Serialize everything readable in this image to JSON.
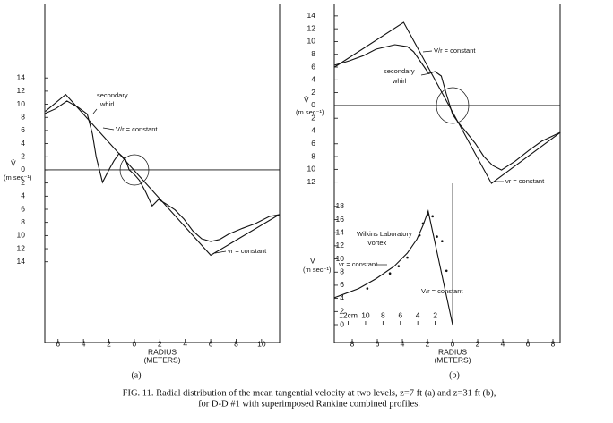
{
  "chart_data": [
    {
      "type": "line",
      "panel_label": "(a)",
      "ylabel": "V̄",
      "ylabel_unit": "(m sec⁻¹)",
      "xlabel": "RADIUS",
      "xlabel_unit": "(METERS)",
      "xlim": [
        -7.04,
        11.42
      ],
      "ylim": [
        -26.3,
        25.2
      ],
      "xticks": [
        {
          "value": -6,
          "label": "6"
        },
        {
          "value": -4,
          "label": "4"
        },
        {
          "value": -2,
          "label": "2"
        },
        0,
        2,
        4,
        6,
        8,
        10
      ],
      "yticks": [
        14,
        12,
        10,
        8,
        6,
        4,
        2,
        0,
        {
          "value": -2,
          "label": "2"
        },
        {
          "value": -4,
          "label": "4"
        },
        {
          "value": -6,
          "label": "6"
        },
        {
          "value": -8,
          "label": "8"
        },
        {
          "value": -10,
          "label": "10"
        },
        {
          "value": -12,
          "label": "12"
        },
        {
          "value": -14,
          "label": "14"
        }
      ],
      "annotations": [
        "secondary",
        "whirl",
        "V/r = constant",
        "vr = constant"
      ],
      "series": [
        {
          "color": "#111",
          "style": "line",
          "x": [
            -7.0,
            -6.2,
            -5.3,
            -4.4,
            -3.7,
            -3.3,
            -3.0,
            -2.5,
            -2.0,
            -1.6,
            -1.2,
            -0.7,
            -0.4,
            0,
            0.4,
            0.9,
            1.4,
            1.9,
            2.5,
            3.2,
            3.9,
            4.6,
            5.3,
            6.0,
            6.7,
            7.4,
            8.5,
            9.5,
            10.6,
            11.4
          ],
          "values": [
            8.6,
            9.3,
            10.5,
            9.5,
            8.5,
            5.5,
            2.0,
            -1.9,
            0,
            1.4,
            2.5,
            1.6,
            0,
            -0.7,
            -1.6,
            -3.4,
            -5.5,
            -4.5,
            -5.2,
            -6.1,
            -7.5,
            -9.3,
            -10.5,
            -10.9,
            -10.6,
            -9.8,
            -8.9,
            -8.2,
            -7.1,
            -6.8
          ]
        },
        {
          "color": "#111",
          "style": "line",
          "x": [
            -7.0,
            -5.4,
            6.0,
            11.4
          ],
          "values": [
            8.9,
            11.5,
            -13.0,
            -6.8
          ]
        }
      ]
    },
    {
      "type": "line",
      "panel_label": "(b)",
      "ylabel": "V̄",
      "ylabel_unit": "(m sec⁻¹)",
      "xlabel": "RADIUS",
      "xlabel_unit": "(METERS)",
      "xlim": [
        -9.43,
        8.57
      ],
      "ylim": [
        -37.1,
        15.8
      ],
      "xticks": [
        {
          "value": -8,
          "label": "8"
        },
        {
          "value": -6,
          "label": "6"
        },
        {
          "value": -4,
          "label": "4"
        },
        {
          "value": -2,
          "label": "2"
        },
        0,
        2,
        4,
        6,
        8
      ],
      "yticks": [
        14,
        12,
        10,
        8,
        6,
        4,
        2,
        0,
        {
          "value": -2,
          "label": "2"
        },
        {
          "value": -4,
          "label": "4"
        },
        {
          "value": -6,
          "label": "6"
        },
        {
          "value": -8,
          "label": "8"
        },
        {
          "value": -10,
          "label": "10"
        },
        {
          "value": -12,
          "label": "12"
        }
      ],
      "annotations": [
        "V/r = constant",
        "secondary",
        "whirl",
        "vr = constant"
      ],
      "series": [
        {
          "color": "#111",
          "style": "line",
          "x": [
            -9.4,
            -8.2,
            -7.1,
            -6.1,
            -4.6,
            -3.6,
            -3.1,
            -2.5,
            -1.9,
            -1.4,
            -0.9,
            -0.5,
            0,
            0.5,
            1.1,
            1.8,
            2.5,
            3.2,
            3.9,
            5.0,
            6.1,
            7.1,
            8.6
          ],
          "values": [
            6.3,
            7.0,
            7.8,
            8.8,
            9.5,
            9.2,
            8.4,
            6.7,
            5.0,
            5.3,
            4.6,
            1.8,
            -1.4,
            -2.8,
            -4.2,
            -5.9,
            -8.0,
            -9.4,
            -10.1,
            -8.7,
            -7.0,
            -5.6,
            -4.2
          ]
        },
        {
          "color": "#111",
          "style": "line",
          "x": [
            -9.4,
            -3.9,
            3.1,
            8.6
          ],
          "values": [
            6.0,
            13.0,
            -12.2,
            -4.2
          ]
        }
      ]
    },
    {
      "type": "line",
      "ylabel": "V",
      "ylabel_unit": "(m sec⁻¹)",
      "xlim": [
        -13.6,
        0
      ],
      "ylim": [
        0,
        19.2
      ],
      "xticks": [
        {
          "value": -12,
          "label": "12cm"
        },
        {
          "value": -10,
          "label": "10"
        },
        {
          "value": -8,
          "label": "8"
        },
        {
          "value": -6,
          "label": "6"
        },
        {
          "value": -4,
          "label": "4"
        },
        {
          "value": -2,
          "label": "2"
        }
      ],
      "yticks": [
        0,
        2,
        4,
        6,
        8,
        10,
        12,
        14,
        16,
        18
      ],
      "annotations": [
        "Wilkins Laboratory",
        "Vortex",
        "vr = constant",
        "V/r = constant"
      ],
      "series": [
        {
          "color": "#111",
          "style": "line",
          "x": [
            -13.6,
            -10.8,
            -8.8,
            -6.7,
            -5.2,
            -4.1,
            -3.4,
            -2.8,
            0
          ],
          "values": [
            4.1,
            5.5,
            7.0,
            8.9,
            10.9,
            13.0,
            15.1,
            17.3,
            0
          ]
        },
        {
          "color": "#111",
          "style": "points",
          "x": [
            -9.8,
            -7.2,
            -6.2,
            -5.2,
            -3.8,
            -3.4,
            -2.8,
            -2.3,
            -1.8,
            -1.2,
            -0.7
          ],
          "values": [
            5.5,
            7.8,
            8.9,
            10.2,
            13.6,
            15.4,
            16.8,
            16.5,
            13.4,
            12.7,
            8.2
          ]
        }
      ]
    }
  ],
  "caption": [
    "FIG. 11. Radial distribution of the mean tangential velocity at two levels, z=7 ft (a) and z=31 ft (b),",
    "for D-D #1 with superimposed Rankine combined profiles."
  ]
}
